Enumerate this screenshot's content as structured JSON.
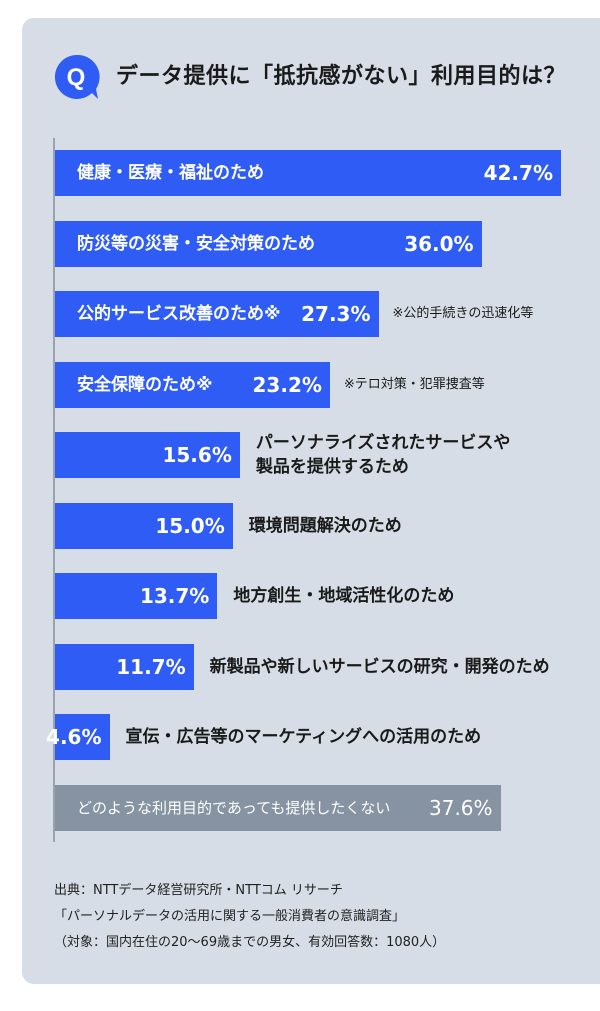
{
  "colors": {
    "bar_primary": "#2f5cf4",
    "bar_gray": "#8593a2",
    "background": "#d6dde6",
    "badge": "#2f5cf4"
  },
  "header": {
    "badge_letter": "Q",
    "title": "データ提供に「抵抗感がない」利用目的は？"
  },
  "chart_data": {
    "type": "bar",
    "orientation": "horizontal",
    "title": "データ提供に「抵抗感がない」利用目的は？",
    "xlim": [
      0,
      50
    ],
    "categories": [
      "健康・医療・福祉のため",
      "防災等の災害・安全対策のため",
      "公的サービス改善のため※",
      "安全保障のため※",
      "パーソナライズされたサービスや製品を提供するため",
      "環境問題解決のため",
      "地方創生・地域活性化のため",
      "新製品や新しいサービスの研究・開発のため",
      "宣伝・広告等のマーケティングへの活用のため",
      "どのような利用目的であっても提供したくない"
    ],
    "values": [
      42.7,
      36.0,
      27.3,
      23.2,
      15.6,
      15.0,
      13.7,
      11.7,
      4.6,
      37.6
    ],
    "value_labels": [
      "42.7%",
      "36.0%",
      "27.3%",
      "23.2%",
      "15.6%",
      "15.0%",
      "13.7%",
      "11.7%",
      "4.6%",
      "37.6%"
    ],
    "label_lines": [
      [
        "健康・医療・福祉のため"
      ],
      [
        "防災等の災害・安全対策のため"
      ],
      [
        "公的サービス改善のため※"
      ],
      [
        "安全保障のため※"
      ],
      [
        "パーソナライズされたサービスや",
        "製品を提供するため"
      ],
      [
        "環境問題解決のため"
      ],
      [
        "地方創生・地域活性化のため"
      ],
      [
        "新製品や新しいサービスの研究・開発のため"
      ],
      [
        "宣伝・広告等のマーケティングへの活用のため"
      ],
      [
        "どのような利用目的であっても提供したくない"
      ]
    ],
    "notes": [
      "",
      "",
      "※公的手続きの迅速化等",
      "※テロ対策・犯罪捜査等",
      "",
      "",
      "",
      "",
      "",
      ""
    ],
    "bar_color_keys": [
      "bar_primary",
      "bar_primary",
      "bar_primary",
      "bar_primary",
      "bar_primary",
      "bar_primary",
      "bar_primary",
      "bar_primary",
      "bar_primary",
      "bar_gray"
    ],
    "label_inside": [
      true,
      true,
      true,
      true,
      false,
      false,
      false,
      false,
      false,
      true
    ]
  },
  "source": {
    "line1": "出典：NTTデータ経営研究所・NTTコム リサーチ",
    "line2": "「パーソナルデータの活用に関する一般消費者の意識調査」",
    "line3": "（対象：国内在住の20〜69歳までの男女、有効回答数：1080人）"
  }
}
